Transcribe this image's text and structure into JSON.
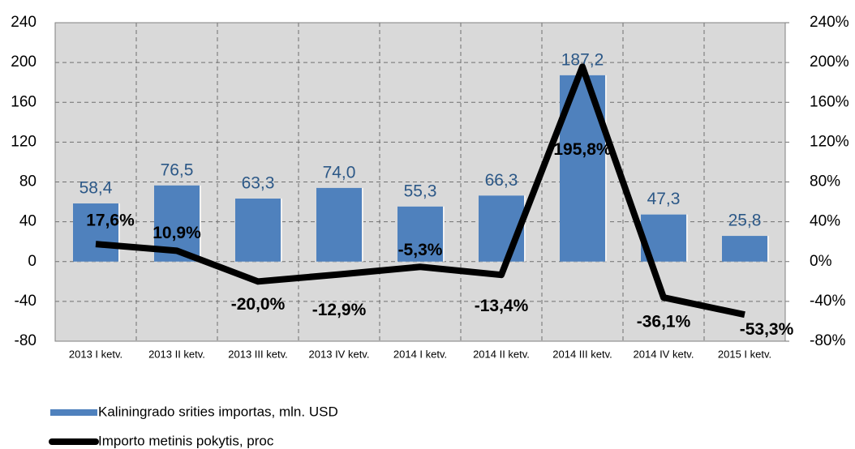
{
  "chart_data": {
    "type": "bar-line",
    "categories": [
      "2013  I ketv.",
      "2013 II ketv.",
      "2013 III ketv.",
      "2013 IV ketv.",
      "2014  I ketv.",
      "2014 II ketv.",
      "2014 III ketv.",
      "2014 IV ketv.",
      "2015  I ketv."
    ],
    "series": [
      {
        "name": "Kaliningrado srities importas, mln. USD",
        "type": "bar",
        "color": "#4f81bd",
        "values": [
          58.4,
          76.5,
          63.3,
          74.0,
          55.3,
          66.3,
          187.2,
          47.3,
          25.8
        ],
        "value_labels": [
          "58,4",
          "76,5",
          "63,3",
          "74,0",
          "55,3",
          "66,3",
          "187,2",
          "47,3",
          "25,8"
        ]
      },
      {
        "name": "Importo metinis pokytis, proc",
        "type": "line",
        "axis": "y2",
        "color": "#000000",
        "values": [
          17.6,
          10.9,
          -20.0,
          -12.9,
          -5.3,
          -13.4,
          195.8,
          -36.1,
          -53.3
        ],
        "value_labels": [
          "17,6%",
          "10,9%",
          "-20,0%",
          "-12,9%",
          "-5,3%",
          "-13,4%",
          "195,8%",
          "-36,1%",
          "-53,3%"
        ]
      }
    ],
    "ylim": [
      -80,
      240
    ],
    "yticks": [
      -80,
      -40,
      0,
      40,
      80,
      120,
      160,
      200,
      240
    ],
    "y2lim": [
      -80,
      240
    ],
    "y2ticks": [
      {
        "value": -80,
        "label": "-80%"
      },
      {
        "value": -40,
        "label": "-40%"
      },
      {
        "value": 0,
        "label": "0%"
      },
      {
        "value": 40,
        "label": "40%"
      },
      {
        "value": 80,
        "label": "80%"
      },
      {
        "value": 120,
        "label": "120%"
      },
      {
        "value": 160,
        "label": "160%"
      },
      {
        "value": 200,
        "label": "200%"
      },
      {
        "value": 240,
        "label": "240%"
      }
    ],
    "grid": true
  }
}
